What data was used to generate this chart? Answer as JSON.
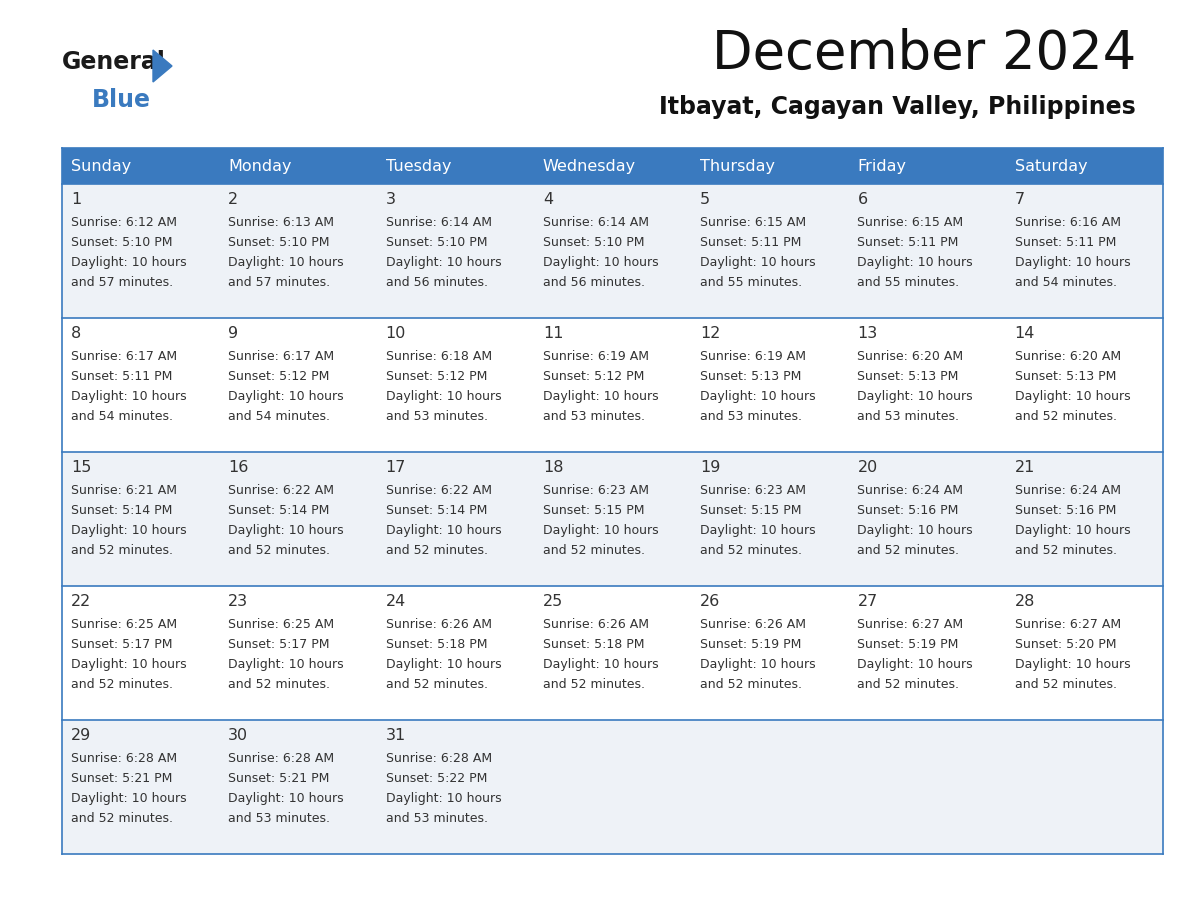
{
  "title": "December 2024",
  "subtitle": "Itbayat, Cagayan Valley, Philippines",
  "header_bg": "#3a7abf",
  "header_text_color": "#ffffff",
  "days_of_week": [
    "Sunday",
    "Monday",
    "Tuesday",
    "Wednesday",
    "Thursday",
    "Friday",
    "Saturday"
  ],
  "row_bg_odd": "#eef2f7",
  "row_bg_even": "#ffffff",
  "cell_border_color": "#3a7abf",
  "text_color": "#333333",
  "logo_color1": "#1a1a1a",
  "logo_color2": "#3a7abf",
  "calendar": [
    [
      {
        "day": 1,
        "sunrise": "6:12 AM",
        "sunset": "5:10 PM",
        "daylight_line1": "Daylight: 10 hours",
        "daylight_line2": "and 57 minutes."
      },
      {
        "day": 2,
        "sunrise": "6:13 AM",
        "sunset": "5:10 PM",
        "daylight_line1": "Daylight: 10 hours",
        "daylight_line2": "and 57 minutes."
      },
      {
        "day": 3,
        "sunrise": "6:14 AM",
        "sunset": "5:10 PM",
        "daylight_line1": "Daylight: 10 hours",
        "daylight_line2": "and 56 minutes."
      },
      {
        "day": 4,
        "sunrise": "6:14 AM",
        "sunset": "5:10 PM",
        "daylight_line1": "Daylight: 10 hours",
        "daylight_line2": "and 56 minutes."
      },
      {
        "day": 5,
        "sunrise": "6:15 AM",
        "sunset": "5:11 PM",
        "daylight_line1": "Daylight: 10 hours",
        "daylight_line2": "and 55 minutes."
      },
      {
        "day": 6,
        "sunrise": "6:15 AM",
        "sunset": "5:11 PM",
        "daylight_line1": "Daylight: 10 hours",
        "daylight_line2": "and 55 minutes."
      },
      {
        "day": 7,
        "sunrise": "6:16 AM",
        "sunset": "5:11 PM",
        "daylight_line1": "Daylight: 10 hours",
        "daylight_line2": "and 54 minutes."
      }
    ],
    [
      {
        "day": 8,
        "sunrise": "6:17 AM",
        "sunset": "5:11 PM",
        "daylight_line1": "Daylight: 10 hours",
        "daylight_line2": "and 54 minutes."
      },
      {
        "day": 9,
        "sunrise": "6:17 AM",
        "sunset": "5:12 PM",
        "daylight_line1": "Daylight: 10 hours",
        "daylight_line2": "and 54 minutes."
      },
      {
        "day": 10,
        "sunrise": "6:18 AM",
        "sunset": "5:12 PM",
        "daylight_line1": "Daylight: 10 hours",
        "daylight_line2": "and 53 minutes."
      },
      {
        "day": 11,
        "sunrise": "6:19 AM",
        "sunset": "5:12 PM",
        "daylight_line1": "Daylight: 10 hours",
        "daylight_line2": "and 53 minutes."
      },
      {
        "day": 12,
        "sunrise": "6:19 AM",
        "sunset": "5:13 PM",
        "daylight_line1": "Daylight: 10 hours",
        "daylight_line2": "and 53 minutes."
      },
      {
        "day": 13,
        "sunrise": "6:20 AM",
        "sunset": "5:13 PM",
        "daylight_line1": "Daylight: 10 hours",
        "daylight_line2": "and 53 minutes."
      },
      {
        "day": 14,
        "sunrise": "6:20 AM",
        "sunset": "5:13 PM",
        "daylight_line1": "Daylight: 10 hours",
        "daylight_line2": "and 52 minutes."
      }
    ],
    [
      {
        "day": 15,
        "sunrise": "6:21 AM",
        "sunset": "5:14 PM",
        "daylight_line1": "Daylight: 10 hours",
        "daylight_line2": "and 52 minutes."
      },
      {
        "day": 16,
        "sunrise": "6:22 AM",
        "sunset": "5:14 PM",
        "daylight_line1": "Daylight: 10 hours",
        "daylight_line2": "and 52 minutes."
      },
      {
        "day": 17,
        "sunrise": "6:22 AM",
        "sunset": "5:14 PM",
        "daylight_line1": "Daylight: 10 hours",
        "daylight_line2": "and 52 minutes."
      },
      {
        "day": 18,
        "sunrise": "6:23 AM",
        "sunset": "5:15 PM",
        "daylight_line1": "Daylight: 10 hours",
        "daylight_line2": "and 52 minutes."
      },
      {
        "day": 19,
        "sunrise": "6:23 AM",
        "sunset": "5:15 PM",
        "daylight_line1": "Daylight: 10 hours",
        "daylight_line2": "and 52 minutes."
      },
      {
        "day": 20,
        "sunrise": "6:24 AM",
        "sunset": "5:16 PM",
        "daylight_line1": "Daylight: 10 hours",
        "daylight_line2": "and 52 minutes."
      },
      {
        "day": 21,
        "sunrise": "6:24 AM",
        "sunset": "5:16 PM",
        "daylight_line1": "Daylight: 10 hours",
        "daylight_line2": "and 52 minutes."
      }
    ],
    [
      {
        "day": 22,
        "sunrise": "6:25 AM",
        "sunset": "5:17 PM",
        "daylight_line1": "Daylight: 10 hours",
        "daylight_line2": "and 52 minutes."
      },
      {
        "day": 23,
        "sunrise": "6:25 AM",
        "sunset": "5:17 PM",
        "daylight_line1": "Daylight: 10 hours",
        "daylight_line2": "and 52 minutes."
      },
      {
        "day": 24,
        "sunrise": "6:26 AM",
        "sunset": "5:18 PM",
        "daylight_line1": "Daylight: 10 hours",
        "daylight_line2": "and 52 minutes."
      },
      {
        "day": 25,
        "sunrise": "6:26 AM",
        "sunset": "5:18 PM",
        "daylight_line1": "Daylight: 10 hours",
        "daylight_line2": "and 52 minutes."
      },
      {
        "day": 26,
        "sunrise": "6:26 AM",
        "sunset": "5:19 PM",
        "daylight_line1": "Daylight: 10 hours",
        "daylight_line2": "and 52 minutes."
      },
      {
        "day": 27,
        "sunrise": "6:27 AM",
        "sunset": "5:19 PM",
        "daylight_line1": "Daylight: 10 hours",
        "daylight_line2": "and 52 minutes."
      },
      {
        "day": 28,
        "sunrise": "6:27 AM",
        "sunset": "5:20 PM",
        "daylight_line1": "Daylight: 10 hours",
        "daylight_line2": "and 52 minutes."
      }
    ],
    [
      {
        "day": 29,
        "sunrise": "6:28 AM",
        "sunset": "5:21 PM",
        "daylight_line1": "Daylight: 10 hours",
        "daylight_line2": "and 52 minutes."
      },
      {
        "day": 30,
        "sunrise": "6:28 AM",
        "sunset": "5:21 PM",
        "daylight_line1": "Daylight: 10 hours",
        "daylight_line2": "and 53 minutes."
      },
      {
        "day": 31,
        "sunrise": "6:28 AM",
        "sunset": "5:22 PM",
        "daylight_line1": "Daylight: 10 hours",
        "daylight_line2": "and 53 minutes."
      },
      null,
      null,
      null,
      null
    ]
  ]
}
